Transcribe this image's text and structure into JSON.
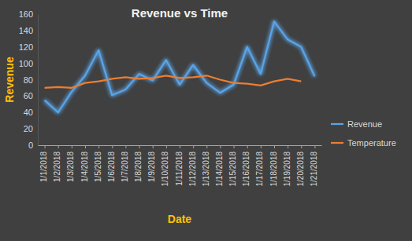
{
  "chart_data": {
    "type": "line",
    "title": "Revenue vs Time",
    "x_label": "Date",
    "y_label": "Revenue",
    "categories": [
      "1/1/2018",
      "1/2/2018",
      "1/3/2018",
      "1/4/2018",
      "1/5/2018",
      "1/6/2018",
      "1/7/2018",
      "1/8/2018",
      "1/9/2018",
      "1/10/2018",
      "1/11/2018",
      "1/12/2018",
      "1/13/2018",
      "1/14/2018",
      "1/15/2018",
      "1/16/2018",
      "1/17/2018",
      "1/18/2018",
      "1/19/2018",
      "1/20/2018",
      "1/21/2018"
    ],
    "series": [
      {
        "name": "Revenue",
        "color": "#5aa3e6",
        "values": [
          55,
          40,
          65,
          85,
          116,
          61,
          68,
          87,
          79,
          104,
          74,
          98,
          76,
          64,
          74,
          120,
          87,
          151,
          129,
          120,
          84
        ]
      },
      {
        "name": "Temperature",
        "color": "#ed7d31",
        "values": [
          70,
          71,
          70,
          76,
          78,
          81,
          83,
          81,
          82,
          85,
          82,
          83,
          85,
          80,
          76,
          75,
          73,
          78,
          81,
          78,
          null
        ]
      }
    ],
    "ylim": [
      0,
      160
    ],
    "yticks": [
      0,
      20,
      40,
      60,
      80,
      100,
      120,
      140,
      160
    ],
    "grid": false,
    "legend": "right"
  }
}
